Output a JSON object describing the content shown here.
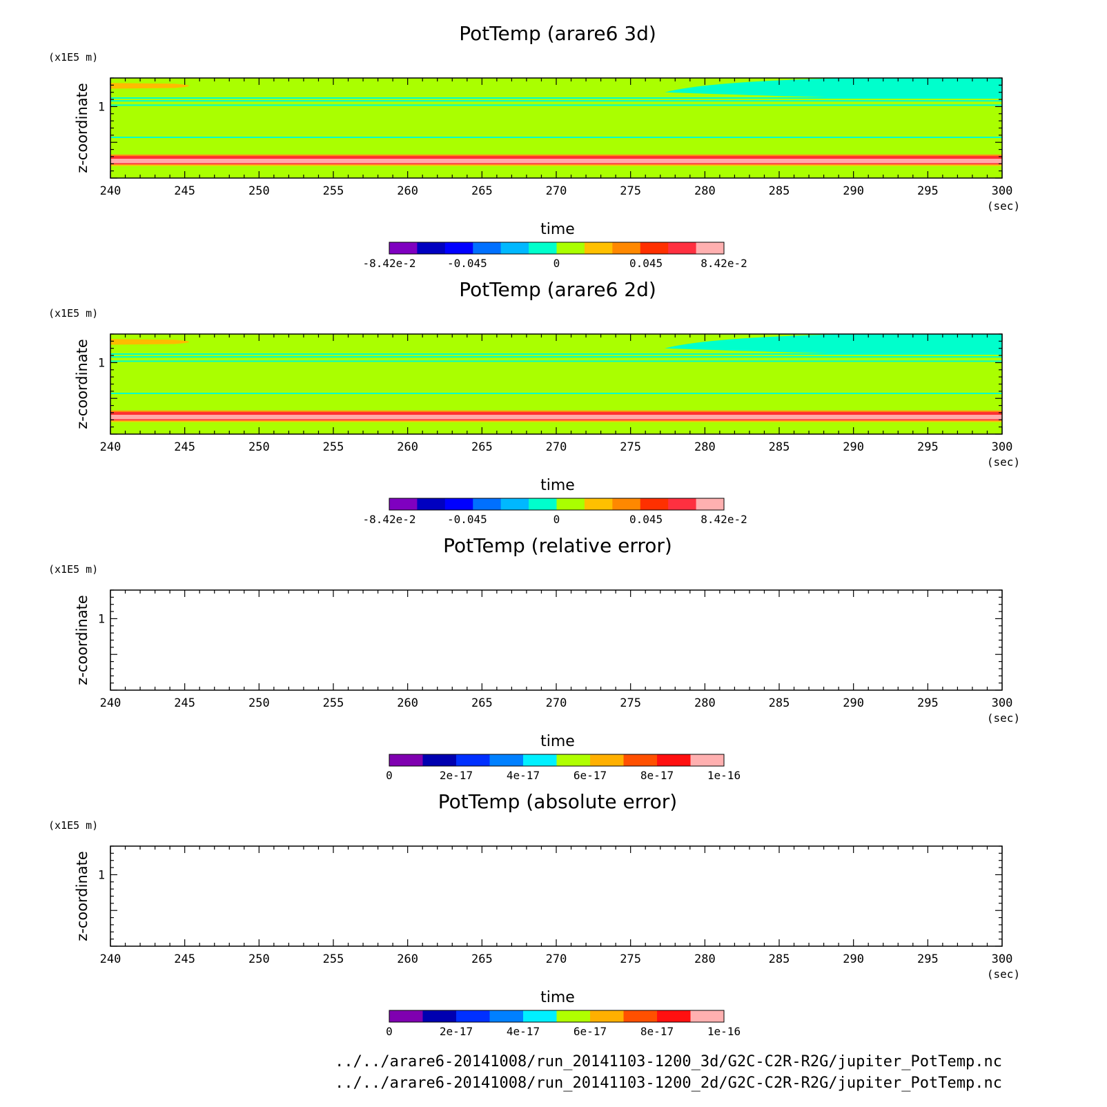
{
  "chart_data": [
    {
      "type": "heatmap",
      "title": "PotTemp (arare6 3d)",
      "xlabel": "time",
      "x_unit": "(sec)",
      "ylabel": "z-coordinate",
      "y_unit": "(x1E5 m)",
      "xlim": [
        240,
        300
      ],
      "ylim": [
        0,
        1.4
      ],
      "x_ticks": [
        "240",
        "245",
        "250",
        "255",
        "260",
        "265",
        "270",
        "275",
        "280",
        "285",
        "290",
        "295",
        "300"
      ],
      "y_ticks": [
        "1"
      ],
      "bands": [
        {
          "y0": 0.0,
          "y1": 0.17,
          "color": "#aaff00"
        },
        {
          "y0": 0.17,
          "y1": 0.19,
          "color": "#ffbb00"
        },
        {
          "y0": 0.19,
          "y1": 0.21,
          "color": "#ff3030"
        },
        {
          "y0": 0.21,
          "y1": 0.27,
          "color": "#ffaaaa"
        },
        {
          "y0": 0.27,
          "y1": 0.31,
          "color": "#ff3030"
        },
        {
          "y0": 0.31,
          "y1": 0.33,
          "color": "#ff8800"
        },
        {
          "y0": 0.33,
          "y1": 1.4,
          "color": "#aaff00"
        }
      ],
      "contours": [
        {
          "y": 0.57,
          "color": "#00ffcc"
        },
        {
          "y": 1.02,
          "color": "#00ffcc"
        },
        {
          "y": 1.08,
          "color": "#00ffcc"
        },
        {
          "y": 1.12,
          "color": "#00ffcc"
        }
      ],
      "features": [
        {
          "kind": "wedge",
          "color": "#00ffcc",
          "x_start": 277.3,
          "x_full": 290,
          "y_low": 1.12,
          "y_mid": 1.2,
          "y_high": 1.4
        },
        {
          "kind": "tongue",
          "color": "#ffbb00",
          "x_end": 246.3,
          "y_low": 1.25,
          "y_high": 1.33
        }
      ],
      "colorbar": {
        "colors": [
          "#7f00c0",
          "#0000c0",
          "#0000ff",
          "#0070ff",
          "#00b8ff",
          "#00ffcc",
          "#aaff00",
          "#ffc000",
          "#ff8800",
          "#ff3000",
          "#ff3040",
          "#ffb0b0"
        ],
        "ticks": [
          "-8.42e-2",
          "-0.045",
          "0",
          "0.045",
          "8.42e-2"
        ],
        "tick_values": [
          -0.0842,
          -0.045,
          0,
          0.045,
          0.0842
        ],
        "vmin": -0.0842,
        "vmax": 0.0842
      }
    },
    {
      "type": "heatmap",
      "title": "PotTemp (arare6 2d)",
      "xlabel": "time",
      "x_unit": "(sec)",
      "ylabel": "z-coordinate",
      "y_unit": "(x1E5 m)",
      "xlim": [
        240,
        300
      ],
      "ylim": [
        0,
        1.4
      ],
      "x_ticks": [
        "240",
        "245",
        "250",
        "255",
        "260",
        "265",
        "270",
        "275",
        "280",
        "285",
        "290",
        "295",
        "300"
      ],
      "y_ticks": [
        "1"
      ],
      "bands": [
        {
          "y0": 0.0,
          "y1": 0.17,
          "color": "#aaff00"
        },
        {
          "y0": 0.17,
          "y1": 0.19,
          "color": "#ffbb00"
        },
        {
          "y0": 0.19,
          "y1": 0.21,
          "color": "#ff3030"
        },
        {
          "y0": 0.21,
          "y1": 0.27,
          "color": "#ffaaaa"
        },
        {
          "y0": 0.27,
          "y1": 0.31,
          "color": "#ff3030"
        },
        {
          "y0": 0.31,
          "y1": 0.33,
          "color": "#ff8800"
        },
        {
          "y0": 0.33,
          "y1": 1.4,
          "color": "#aaff00"
        }
      ],
      "contours": [
        {
          "y": 0.57,
          "color": "#00ffcc"
        },
        {
          "y": 1.02,
          "color": "#00ffcc"
        },
        {
          "y": 1.08,
          "color": "#00ffcc"
        },
        {
          "y": 1.12,
          "color": "#00ffcc"
        }
      ],
      "features": [
        {
          "kind": "wedge",
          "color": "#00ffcc",
          "x_start": 277.3,
          "x_full": 290,
          "y_low": 1.12,
          "y_mid": 1.2,
          "y_high": 1.4
        },
        {
          "kind": "tongue",
          "color": "#ffbb00",
          "x_end": 246.3,
          "y_low": 1.25,
          "y_high": 1.33
        }
      ],
      "colorbar": {
        "colors": [
          "#7f00c0",
          "#0000c0",
          "#0000ff",
          "#0070ff",
          "#00b8ff",
          "#00ffcc",
          "#aaff00",
          "#ffc000",
          "#ff8800",
          "#ff3000",
          "#ff3040",
          "#ffb0b0"
        ],
        "ticks": [
          "-8.42e-2",
          "-0.045",
          "0",
          "0.045",
          "8.42e-2"
        ],
        "tick_values": [
          -0.0842,
          -0.045,
          0,
          0.045,
          0.0842
        ],
        "vmin": -0.0842,
        "vmax": 0.0842
      }
    },
    {
      "type": "heatmap",
      "title": "PotTemp (relative error)",
      "xlabel": "time",
      "x_unit": "(sec)",
      "ylabel": "z-coordinate",
      "y_unit": "(x1E5 m)",
      "xlim": [
        240,
        300
      ],
      "ylim": [
        0,
        1.4
      ],
      "x_ticks": [
        "240",
        "245",
        "250",
        "255",
        "260",
        "265",
        "270",
        "275",
        "280",
        "285",
        "290",
        "295",
        "300"
      ],
      "y_ticks": [
        "1"
      ],
      "bands": [],
      "contours": [],
      "features": [],
      "colorbar": {
        "colors": [
          "#7f00b0",
          "#0000b0",
          "#0030ff",
          "#0080ff",
          "#00f0ff",
          "#b0ff00",
          "#ffb000",
          "#ff5000",
          "#ff1010",
          "#ffb0b0"
        ],
        "ticks": [
          "0",
          "2e-17",
          "4e-17",
          "6e-17",
          "8e-17",
          "1e-16"
        ],
        "tick_values": [
          0,
          2e-17,
          4e-17,
          6e-17,
          8e-17,
          1e-16
        ],
        "vmin": 0,
        "vmax": 1e-16
      }
    },
    {
      "type": "heatmap",
      "title": "PotTemp (absolute error)",
      "xlabel": "time",
      "x_unit": "(sec)",
      "ylabel": "z-coordinate",
      "y_unit": "(x1E5 m)",
      "xlim": [
        240,
        300
      ],
      "ylim": [
        0,
        1.4
      ],
      "x_ticks": [
        "240",
        "245",
        "250",
        "255",
        "260",
        "265",
        "270",
        "275",
        "280",
        "285",
        "290",
        "295",
        "300"
      ],
      "y_ticks": [
        "1"
      ],
      "bands": [],
      "contours": [],
      "features": [],
      "colorbar": {
        "colors": [
          "#7f00b0",
          "#0000b0",
          "#0030ff",
          "#0080ff",
          "#00f0ff",
          "#b0ff00",
          "#ffb000",
          "#ff5000",
          "#ff1010",
          "#ffb0b0"
        ],
        "ticks": [
          "0",
          "2e-17",
          "4e-17",
          "6e-17",
          "8e-17",
          "1e-16"
        ],
        "tick_values": [
          0,
          2e-17,
          4e-17,
          6e-17,
          8e-17,
          1e-16
        ],
        "vmin": 0,
        "vmax": 1e-16
      }
    }
  ],
  "footer": {
    "file_3d": "../../arare6-20141008/run_20141103-1200_3d/G2C-C2R-R2G/jupiter_PotTemp.nc",
    "file_2d": "../../arare6-20141008/run_20141103-1200_2d/G2C-C2R-R2G/jupiter_PotTemp.nc"
  }
}
